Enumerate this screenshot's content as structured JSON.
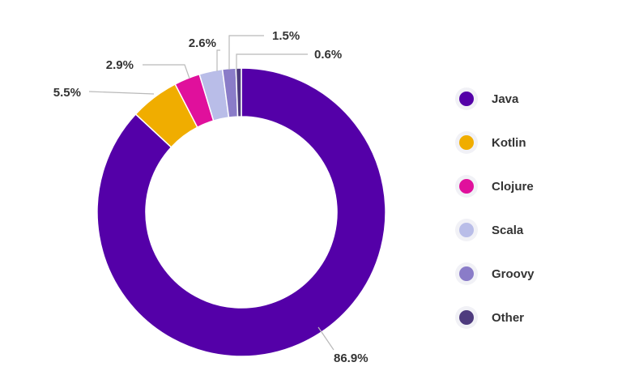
{
  "chart_data": {
    "type": "pie",
    "variant": "donut",
    "title": "",
    "legend_position": "right",
    "categories": [
      "Java",
      "Kotlin",
      "Clojure",
      "Scala",
      "Groovy",
      "Other"
    ],
    "values": [
      86.9,
      5.5,
      2.9,
      2.6,
      1.5,
      0.6
    ],
    "labels": [
      "86.9%",
      "5.5%",
      "2.9%",
      "2.6%",
      "1.5%",
      "0.6%"
    ],
    "colors": [
      "#5400a8",
      "#f0ad00",
      "#e0109c",
      "#b9bde8",
      "#8a7cc8",
      "#4e3b7e"
    ]
  }
}
